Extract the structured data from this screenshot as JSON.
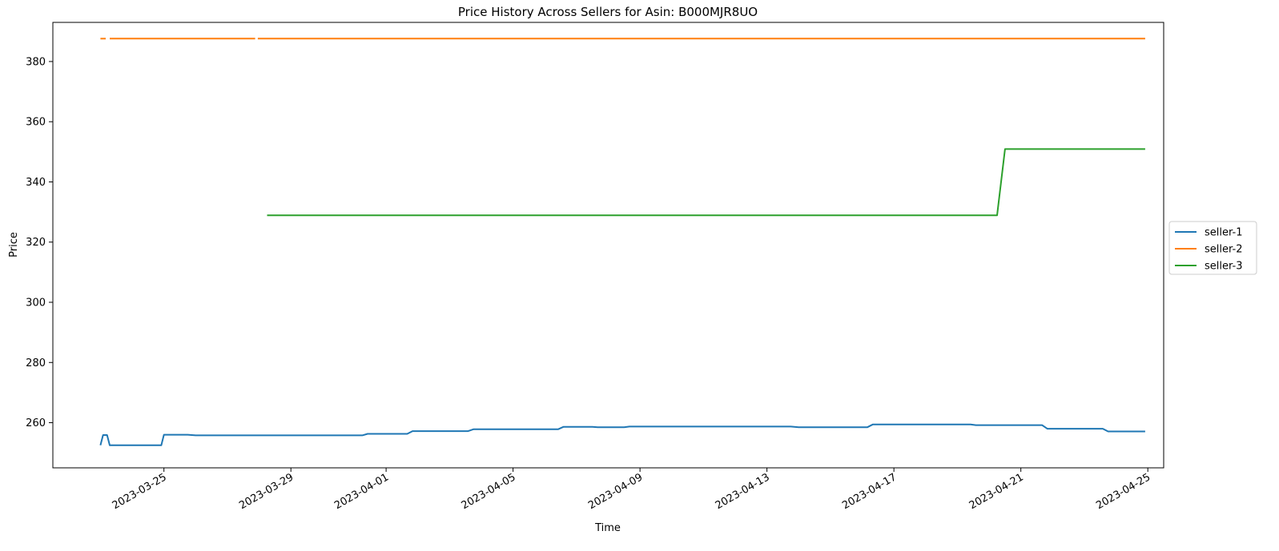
{
  "chart_data": {
    "type": "line",
    "title": "Price History Across Sellers for Asin: B000MJR8UO",
    "xlabel": "Time",
    "ylabel": "Price",
    "x_axis_type": "date",
    "xlim": [
      "2023-03-21T12:00",
      "2023-04-25T12:00"
    ],
    "ylim": [
      245,
      393
    ],
    "x_ticks": [
      "2023-03-25",
      "2023-03-29",
      "2023-04-01",
      "2023-04-05",
      "2023-04-09",
      "2023-04-13",
      "2023-04-17",
      "2023-04-21",
      "2023-04-25"
    ],
    "y_ticks": [
      260,
      280,
      300,
      320,
      340,
      360,
      380
    ],
    "grid": false,
    "legend_position": "center-right",
    "series": [
      {
        "name": "seller-1",
        "color": "#1f77b4",
        "points": [
          [
            "2023-03-23T00:00",
            252.5
          ],
          [
            "2023-03-23T02:00",
            255.9
          ],
          [
            "2023-03-23T05:00",
            255.9
          ],
          [
            "2023-03-23T07:00",
            252.5
          ],
          [
            "2023-03-24T22:00",
            252.5
          ],
          [
            "2023-03-25T00:00",
            256.0
          ],
          [
            "2023-03-25T18:00",
            256.0
          ],
          [
            "2023-03-26T00:00",
            255.8
          ],
          [
            "2023-03-31T06:00",
            255.8
          ],
          [
            "2023-03-31T10:00",
            256.3
          ],
          [
            "2023-04-01T16:00",
            256.3
          ],
          [
            "2023-04-01T20:00",
            257.2
          ],
          [
            "2023-04-03T14:00",
            257.2
          ],
          [
            "2023-04-03T18:00",
            257.8
          ],
          [
            "2023-04-06T10:00",
            257.8
          ],
          [
            "2023-04-06T14:00",
            258.6
          ],
          [
            "2023-04-07T12:00",
            258.6
          ],
          [
            "2023-04-07T16:00",
            258.5
          ],
          [
            "2023-04-08T12:00",
            258.5
          ],
          [
            "2023-04-08T16:00",
            258.7
          ],
          [
            "2023-04-13T18:00",
            258.7
          ],
          [
            "2023-04-14T00:00",
            258.5
          ],
          [
            "2023-04-16T04:00",
            258.5
          ],
          [
            "2023-04-16T08:00",
            259.4
          ],
          [
            "2023-04-19T10:00",
            259.4
          ],
          [
            "2023-04-19T14:00",
            259.2
          ],
          [
            "2023-04-21T16:00",
            259.2
          ],
          [
            "2023-04-21T20:00",
            258.0
          ],
          [
            "2023-04-23T14:00",
            258.0
          ],
          [
            "2023-04-23T18:00",
            257.1
          ],
          [
            "2023-04-24T22:00",
            257.1
          ]
        ]
      },
      {
        "name": "seller-2",
        "color": "#ff7f0e",
        "segments": [
          [
            [
              "2023-03-23T00:00",
              387.6
            ],
            [
              "2023-03-23T04:00",
              387.6
            ]
          ],
          [
            [
              "2023-03-23T07:00",
              387.6
            ],
            [
              "2023-03-27T21:00",
              387.6
            ]
          ],
          [
            [
              "2023-03-27T23:00",
              387.6
            ],
            [
              "2023-04-24T22:00",
              387.6
            ]
          ]
        ]
      },
      {
        "name": "seller-3",
        "color": "#2ca02c",
        "points": [
          [
            "2023-03-28T06:00",
            328.9
          ],
          [
            "2023-04-20T06:00",
            328.9
          ],
          [
            "2023-04-20T12:00",
            350.9
          ],
          [
            "2023-04-24T22:00",
            350.9
          ]
        ]
      }
    ]
  }
}
